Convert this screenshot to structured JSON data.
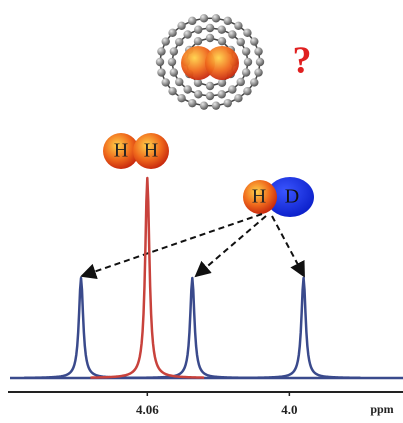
{
  "chart_data": {
    "type": "spectrum",
    "x_label": "ppm",
    "xlim": [
      4.118,
      3.952
    ],
    "xticks": [
      4.06,
      {
        "value": 4,
        "label": "4.0"
      }
    ],
    "ylim": [
      0,
      110
    ],
    "series": [
      {
        "color": "#c8423c",
        "x": [
          4.06
        ],
        "values": [
          100
        ]
      },
      {
        "color": "#3a4a8c",
        "x": [
          4.088,
          4.041,
          3.994
        ],
        "values": [
          50,
          50,
          50
        ]
      }
    ],
    "annotations": {
      "h2_left": "H",
      "h2_right": "H",
      "hd_h": "H",
      "hd_d": "D",
      "question": "?"
    }
  }
}
